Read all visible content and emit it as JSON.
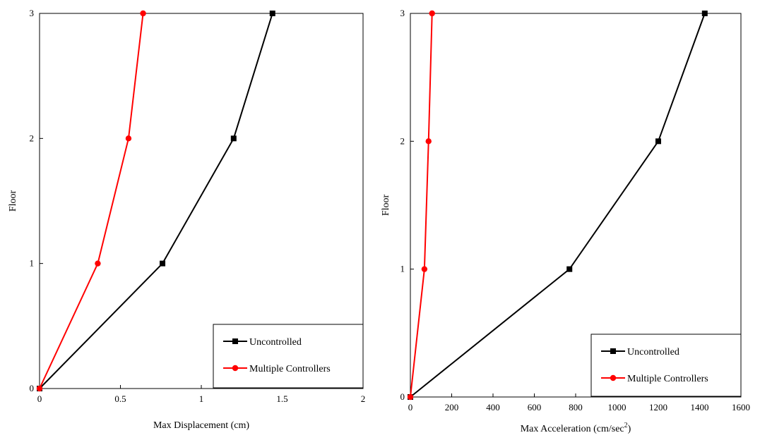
{
  "chart_data": [
    {
      "type": "line",
      "xlabel": "Max Displacement (cm)",
      "ylabel": "Floor",
      "xlim": [
        0,
        2
      ],
      "ylim": [
        0,
        3
      ],
      "xticks": [
        0,
        0.5,
        1,
        1.5,
        2
      ],
      "xtick_labels": [
        "0",
        "0.5",
        "1",
        "1.5",
        "2"
      ],
      "yticks": [
        0,
        1,
        2,
        3
      ],
      "ytick_labels": [
        "0",
        "1",
        "2",
        "3"
      ],
      "grid": false,
      "legend_position": "bottom-right",
      "series": [
        {
          "name": "Uncontrolled",
          "color": "#000000",
          "marker": "square",
          "x": [
            0,
            0.76,
            1.2,
            1.44
          ],
          "y": [
            0,
            1,
            2,
            3
          ]
        },
        {
          "name": "Multiple Controllers",
          "color": "#ff0000",
          "marker": "circle",
          "x": [
            0,
            0.36,
            0.55,
            0.64
          ],
          "y": [
            0,
            1,
            2,
            3
          ]
        }
      ]
    },
    {
      "type": "line",
      "xlabel": "Max Acceleration (cm/sec",
      "xlabel_sup": "2",
      "xlabel_tail": ")",
      "ylabel": "Floor",
      "xlim": [
        0,
        1600
      ],
      "ylim": [
        0,
        3
      ],
      "xticks": [
        0,
        200,
        400,
        600,
        800,
        1000,
        1200,
        1400,
        1600
      ],
      "xtick_labels": [
        "0",
        "200",
        "400",
        "600",
        "800",
        "1000",
        "1200",
        "1400",
        "1600"
      ],
      "yticks": [
        0,
        1,
        2,
        3
      ],
      "ytick_labels": [
        "0",
        "1",
        "2",
        "3"
      ],
      "grid": false,
      "legend_position": "bottom-right",
      "series": [
        {
          "name": "Uncontrolled",
          "color": "#000000",
          "marker": "square",
          "x": [
            0,
            770,
            1200,
            1425
          ],
          "y": [
            0,
            1,
            2,
            3
          ]
        },
        {
          "name": "Multiple Controllers",
          "color": "#ff0000",
          "marker": "circle",
          "x": [
            0,
            68,
            88,
            105
          ],
          "y": [
            0,
            1,
            2,
            3
          ]
        }
      ]
    }
  ]
}
